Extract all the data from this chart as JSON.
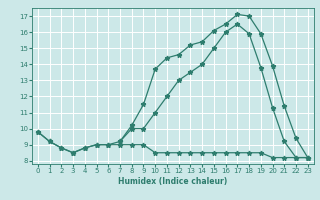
{
  "xlabel": "Humidex (Indice chaleur)",
  "bg_color": "#cce8e8",
  "line_color": "#2e7d6e",
  "grid_color": "#ffffff",
  "xlim": [
    -0.5,
    23.5
  ],
  "ylim": [
    7.8,
    17.5
  ],
  "xticks": [
    0,
    1,
    2,
    3,
    4,
    5,
    6,
    7,
    8,
    9,
    10,
    11,
    12,
    13,
    14,
    15,
    16,
    17,
    18,
    19,
    20,
    21,
    22,
    23
  ],
  "yticks": [
    8,
    9,
    10,
    11,
    12,
    13,
    14,
    15,
    16,
    17
  ],
  "line1_x": [
    0,
    1,
    2,
    3,
    4,
    5,
    6,
    7,
    8,
    9,
    10,
    11,
    12,
    13,
    14,
    15,
    16,
    17,
    18,
    19,
    20,
    21,
    22,
    23
  ],
  "line1_y": [
    9.8,
    9.2,
    8.8,
    8.5,
    8.8,
    9.0,
    9.0,
    9.2,
    10.2,
    11.5,
    13.7,
    14.4,
    14.6,
    15.2,
    15.4,
    16.1,
    16.5,
    17.1,
    17.0,
    15.9,
    13.9,
    11.4,
    9.4,
    8.2
  ],
  "line2_x": [
    7,
    8,
    9,
    10,
    11,
    12,
    13,
    14,
    15,
    16,
    17,
    18,
    19,
    20,
    21,
    22,
    23
  ],
  "line2_y": [
    9.2,
    10.0,
    10.0,
    11.0,
    12.0,
    13.0,
    13.5,
    14.0,
    15.0,
    16.0,
    16.5,
    15.9,
    13.8,
    11.3,
    9.2,
    8.2,
    8.2
  ],
  "line3_x": [
    0,
    1,
    2,
    3,
    4,
    5,
    6,
    7,
    8,
    9,
    10,
    11,
    12,
    13,
    14,
    15,
    16,
    17,
    18,
    19,
    20,
    21,
    22,
    23
  ],
  "line3_y": [
    9.8,
    9.2,
    8.8,
    8.5,
    8.8,
    9.0,
    9.0,
    9.0,
    9.0,
    9.0,
    8.5,
    8.5,
    8.5,
    8.5,
    8.5,
    8.5,
    8.5,
    8.5,
    8.5,
    8.5,
    8.2,
    8.2,
    8.2,
    8.2
  ],
  "label_fontsize": 5.5,
  "tick_fontsize": 5.0
}
